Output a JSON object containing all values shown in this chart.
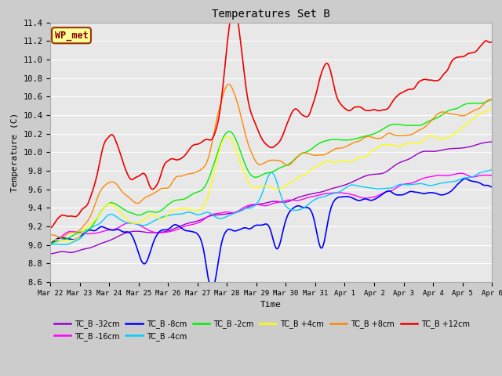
{
  "title": "Temperatures Set B",
  "xlabel": "Time",
  "ylabel": "Temperature (C)",
  "ylim": [
    8.6,
    11.4
  ],
  "background_color": "#cccccc",
  "plot_bg_color": "#e8e8e8",
  "grid_color": "#ffffff",
  "series_order": [
    "TC_B -32cm",
    "TC_B -16cm",
    "TC_B -8cm",
    "TC_B -4cm",
    "TC_B -2cm",
    "TC_B +4cm",
    "TC_B +8cm",
    "TC_B +12cm"
  ],
  "series": {
    "TC_B -32cm": {
      "color": "#9900cc",
      "linewidth": 1.0
    },
    "TC_B -16cm": {
      "color": "#ff00ff",
      "linewidth": 1.0
    },
    "TC_B -8cm": {
      "color": "#0000ff",
      "linewidth": 1.2
    },
    "TC_B -4cm": {
      "color": "#00ccff",
      "linewidth": 1.0
    },
    "TC_B -2cm": {
      "color": "#00ee00",
      "linewidth": 1.0
    },
    "TC_B +4cm": {
      "color": "#ffff00",
      "linewidth": 1.0
    },
    "TC_B +8cm": {
      "color": "#ff8800",
      "linewidth": 1.0
    },
    "TC_B +12cm": {
      "color": "#ee0000",
      "linewidth": 1.2
    }
  },
  "xtick_labels": [
    "Mar 22",
    "Mar 23",
    "Mar 24",
    "Mar 25",
    "Mar 26",
    "Mar 27",
    "Mar 28",
    "Mar 29",
    "Mar 30",
    "Mar 31",
    "Apr 1",
    "Apr 2",
    "Apr 3",
    "Apr 4",
    "Apr 5",
    "Apr 6"
  ],
  "ytick_labels": [
    "8.6",
    "8.8",
    "9.0",
    "9.2",
    "9.4",
    "9.6",
    "9.8",
    "10.0",
    "10.2",
    "10.4",
    "10.6",
    "10.8",
    "11.0",
    "11.2",
    "11.4"
  ],
  "ytick_values": [
    8.6,
    8.8,
    9.0,
    9.2,
    9.4,
    9.6,
    9.8,
    10.0,
    10.2,
    10.4,
    10.6,
    10.8,
    11.0,
    11.2,
    11.4
  ],
  "n_points": 500,
  "wp_met_label": "WP_met",
  "wp_met_bg": "#ffff99",
  "wp_met_border": "#993300",
  "wp_met_text_color": "#880000",
  "legend_ncol": 6,
  "legend_row2": [
    "TC_B +8cm",
    "TC_B +12cm"
  ]
}
